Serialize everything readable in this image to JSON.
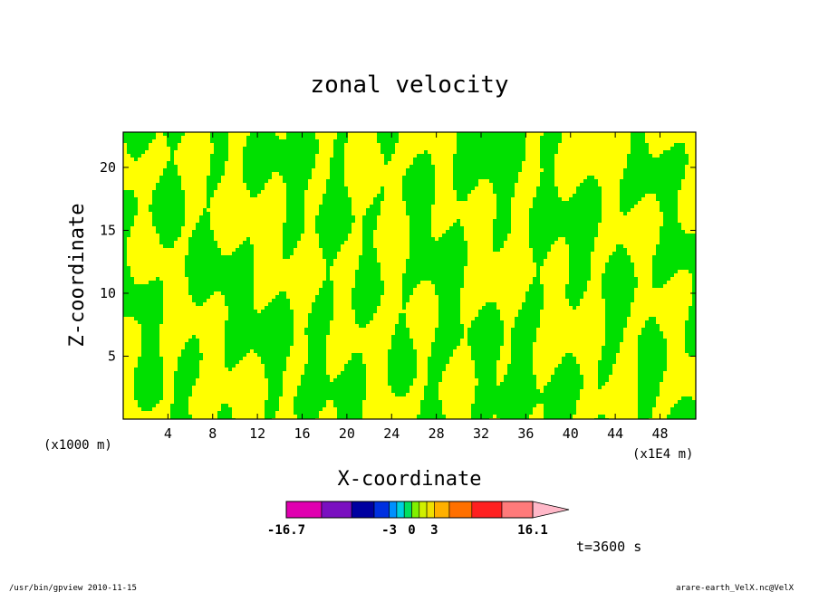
{
  "figure": {
    "footer_left": "/usr/bin/gpview  2010-11-15",
    "footer_right": "arare-earth_VelX.nc@VelX",
    "time_label": "t=3600 s"
  },
  "chart_data": {
    "type": "heatmap",
    "title": "zonal velocity",
    "xlabel": "X-coordinate",
    "ylabel": "Z-coordinate",
    "x_unit_note": "(x1E4 m)",
    "y_unit_note": "(x1000 m)",
    "x_ticks": [
      4,
      8,
      12,
      16,
      20,
      24,
      28,
      32,
      36,
      40,
      44,
      48
    ],
    "y_ticks": [
      5,
      10,
      15,
      20
    ],
    "xlim": [
      0,
      51.2
    ],
    "ylim": [
      0,
      22.8
    ],
    "colorbar": {
      "tick_labels": [
        "-16.7",
        "-3",
        "0",
        "3",
        "16.1"
      ],
      "levels": [
        -16.7,
        -3,
        0,
        3,
        16.1
      ],
      "colors": [
        "#e000b0",
        "#7a10c0",
        "#0000a0",
        "#0030e0",
        "#0090ff",
        "#00d0e0",
        "#00e060",
        "#80f000",
        "#d0f000",
        "#f0e000",
        "#ffb000",
        "#ff7000",
        "#ff2020",
        "#ff7a7a",
        "#ffb8c8"
      ]
    },
    "dominant_colors": {
      "weak_negative": "#00e000",
      "weak_positive": "#ffff00"
    }
  }
}
